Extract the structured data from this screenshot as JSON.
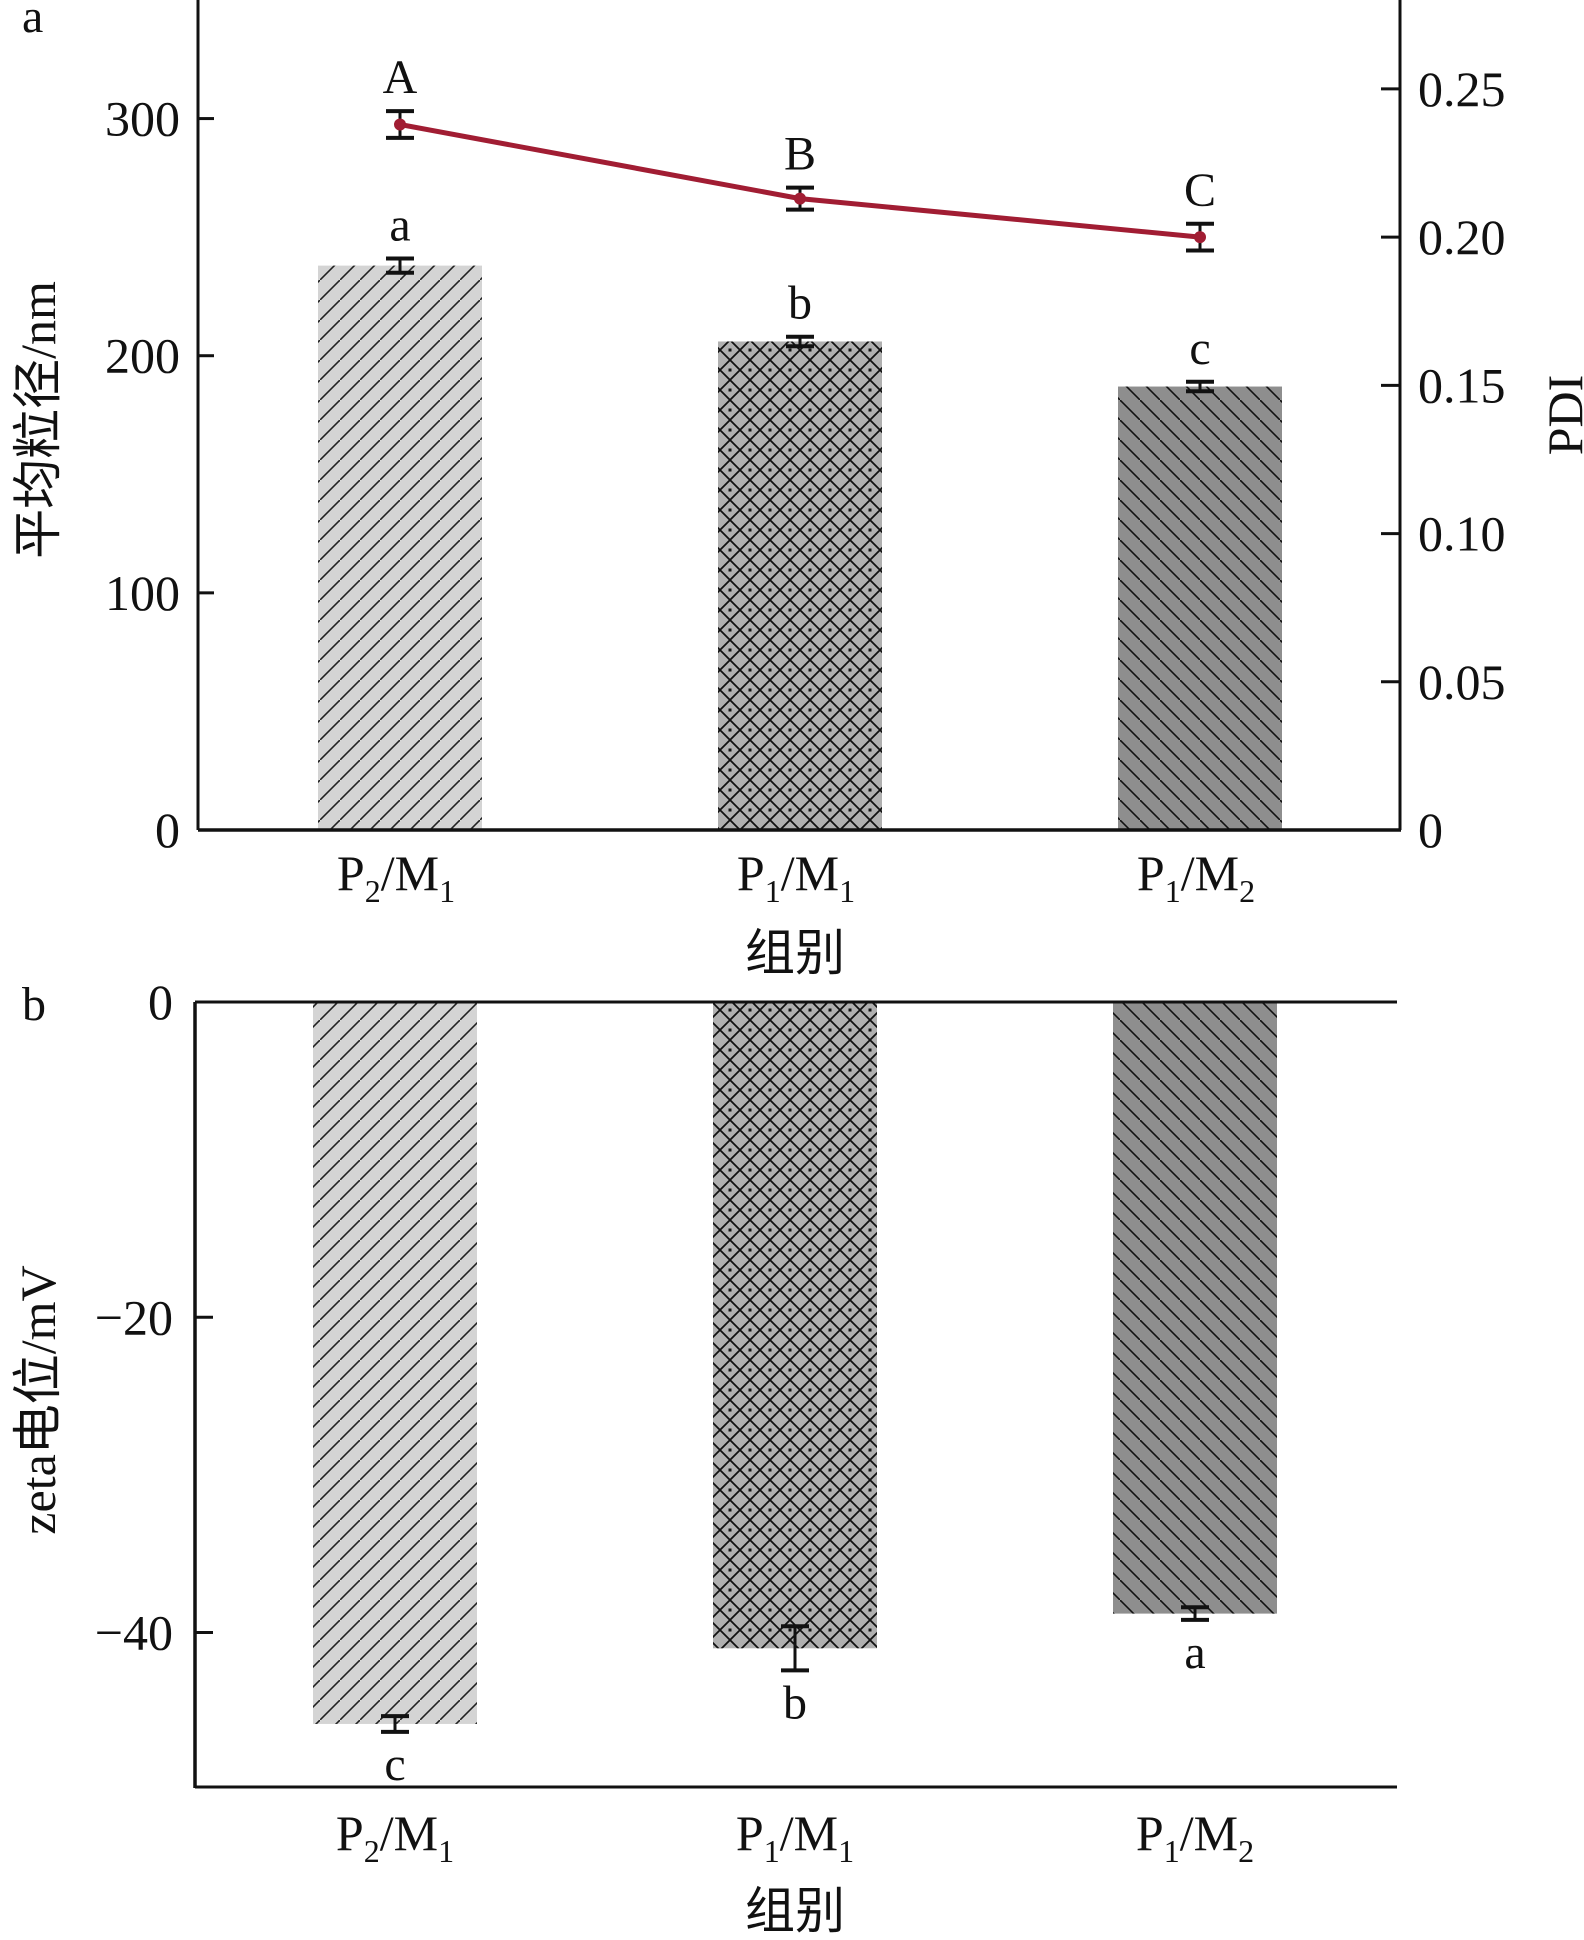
{
  "chart_data": [
    {
      "panel_label": "a",
      "type": "bar+line",
      "categories": [
        {
          "p": "P",
          "p_sub": "2",
          "m": "/M",
          "m_sub": "1"
        },
        {
          "p": "P",
          "p_sub": "1",
          "m": "/M",
          "m_sub": "1"
        },
        {
          "p": "P",
          "p_sub": "1",
          "m": "/M",
          "m_sub": "2"
        }
      ],
      "xlabel": "组别",
      "ylabel_left": "平均粒径/nm",
      "ylabel_right": "PDI",
      "ylim_left": [
        0,
        350
      ],
      "ylim_right": [
        0,
        0.28
      ],
      "yticks_left": [
        "0",
        "100",
        "200",
        "300"
      ],
      "yticks_left_values": [
        0,
        100,
        200,
        300
      ],
      "yticks_right": [
        "0",
        "0.05",
        "0.10",
        "0.15",
        "0.20",
        "0.25"
      ],
      "yticks_right_values": [
        0,
        0.05,
        0.1,
        0.15,
        0.2,
        0.25
      ],
      "series": [
        {
          "name": "平均粒径",
          "type": "bar",
          "axis": "left",
          "values": [
            238,
            206,
            187
          ],
          "errors": [
            3,
            2,
            2
          ],
          "significance": [
            "a",
            "b",
            "c"
          ],
          "patterns": [
            "diagonal-right",
            "crosshatch",
            "diagonal-left"
          ],
          "fills": [
            "#d4d4d4",
            "#b0b0b0",
            "#8e8e8e"
          ]
        },
        {
          "name": "PDI",
          "type": "line",
          "axis": "right",
          "values": [
            0.238,
            0.213,
            0.2
          ],
          "errors": [
            0.0045,
            0.0037,
            0.0045
          ],
          "significance": [
            "A",
            "B",
            "C"
          ],
          "color": "#a11d33"
        }
      ],
      "grid": false
    },
    {
      "panel_label": "b",
      "type": "bar",
      "categories": [
        {
          "p": "P",
          "p_sub": "2",
          "m": "/M",
          "m_sub": "1"
        },
        {
          "p": "P",
          "p_sub": "1",
          "m": "/M",
          "m_sub": "1"
        },
        {
          "p": "P",
          "p_sub": "1",
          "m": "/M",
          "m_sub": "2"
        }
      ],
      "xlabel": "组别",
      "ylabel": "zeta电位/mV",
      "ylim": [
        -49.8,
        0
      ],
      "yticks": [
        "0",
        "−20",
        "−40"
      ],
      "yticks_values": [
        0,
        -20,
        -40
      ],
      "series": [
        {
          "name": "zeta电位",
          "type": "bar",
          "values": [
            -45.8,
            -41.0,
            -38.8
          ],
          "errors": [
            0.5,
            1.4,
            0.4
          ],
          "significance": [
            "c",
            "b",
            "a"
          ],
          "patterns": [
            "diagonal-right",
            "crosshatch",
            "diagonal-left"
          ],
          "fills": [
            "#d4d4d4",
            "#b0b0b0",
            "#8e8e8e"
          ]
        }
      ],
      "grid": false
    }
  ]
}
